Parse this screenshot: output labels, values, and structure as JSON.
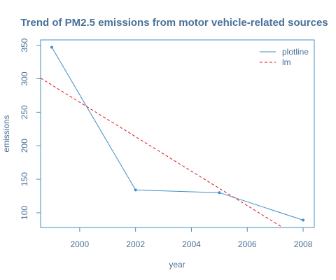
{
  "chart_data": {
    "type": "line",
    "title": "Trend of PM2.5 emissions from motor vehicle-related sources",
    "xlabel": "year",
    "ylabel": "emissions",
    "xlim": [
      1998.6,
      2008.4
    ],
    "ylim": [
      78,
      358
    ],
    "x_ticks": [
      2000,
      2002,
      2004,
      2006,
      2008
    ],
    "y_ticks": [
      100,
      150,
      200,
      250,
      300,
      350
    ],
    "grid": false,
    "legend_position": "top-right",
    "series": [
      {
        "name": "plotline",
        "style": "solid",
        "markers": true,
        "x": [
          1999,
          2002,
          2005,
          2008
        ],
        "y": [
          347,
          134,
          130,
          89
        ]
      },
      {
        "name": "lm",
        "style": "dashed",
        "markers": false,
        "x": [
          1998.6,
          2007.27
        ],
        "y": [
          301,
          78
        ]
      }
    ]
  },
  "colors": {
    "text": "#4a7099",
    "axis": "#4a8fc0",
    "plotline": "#3f8fc7",
    "lm": "#e0101a"
  }
}
